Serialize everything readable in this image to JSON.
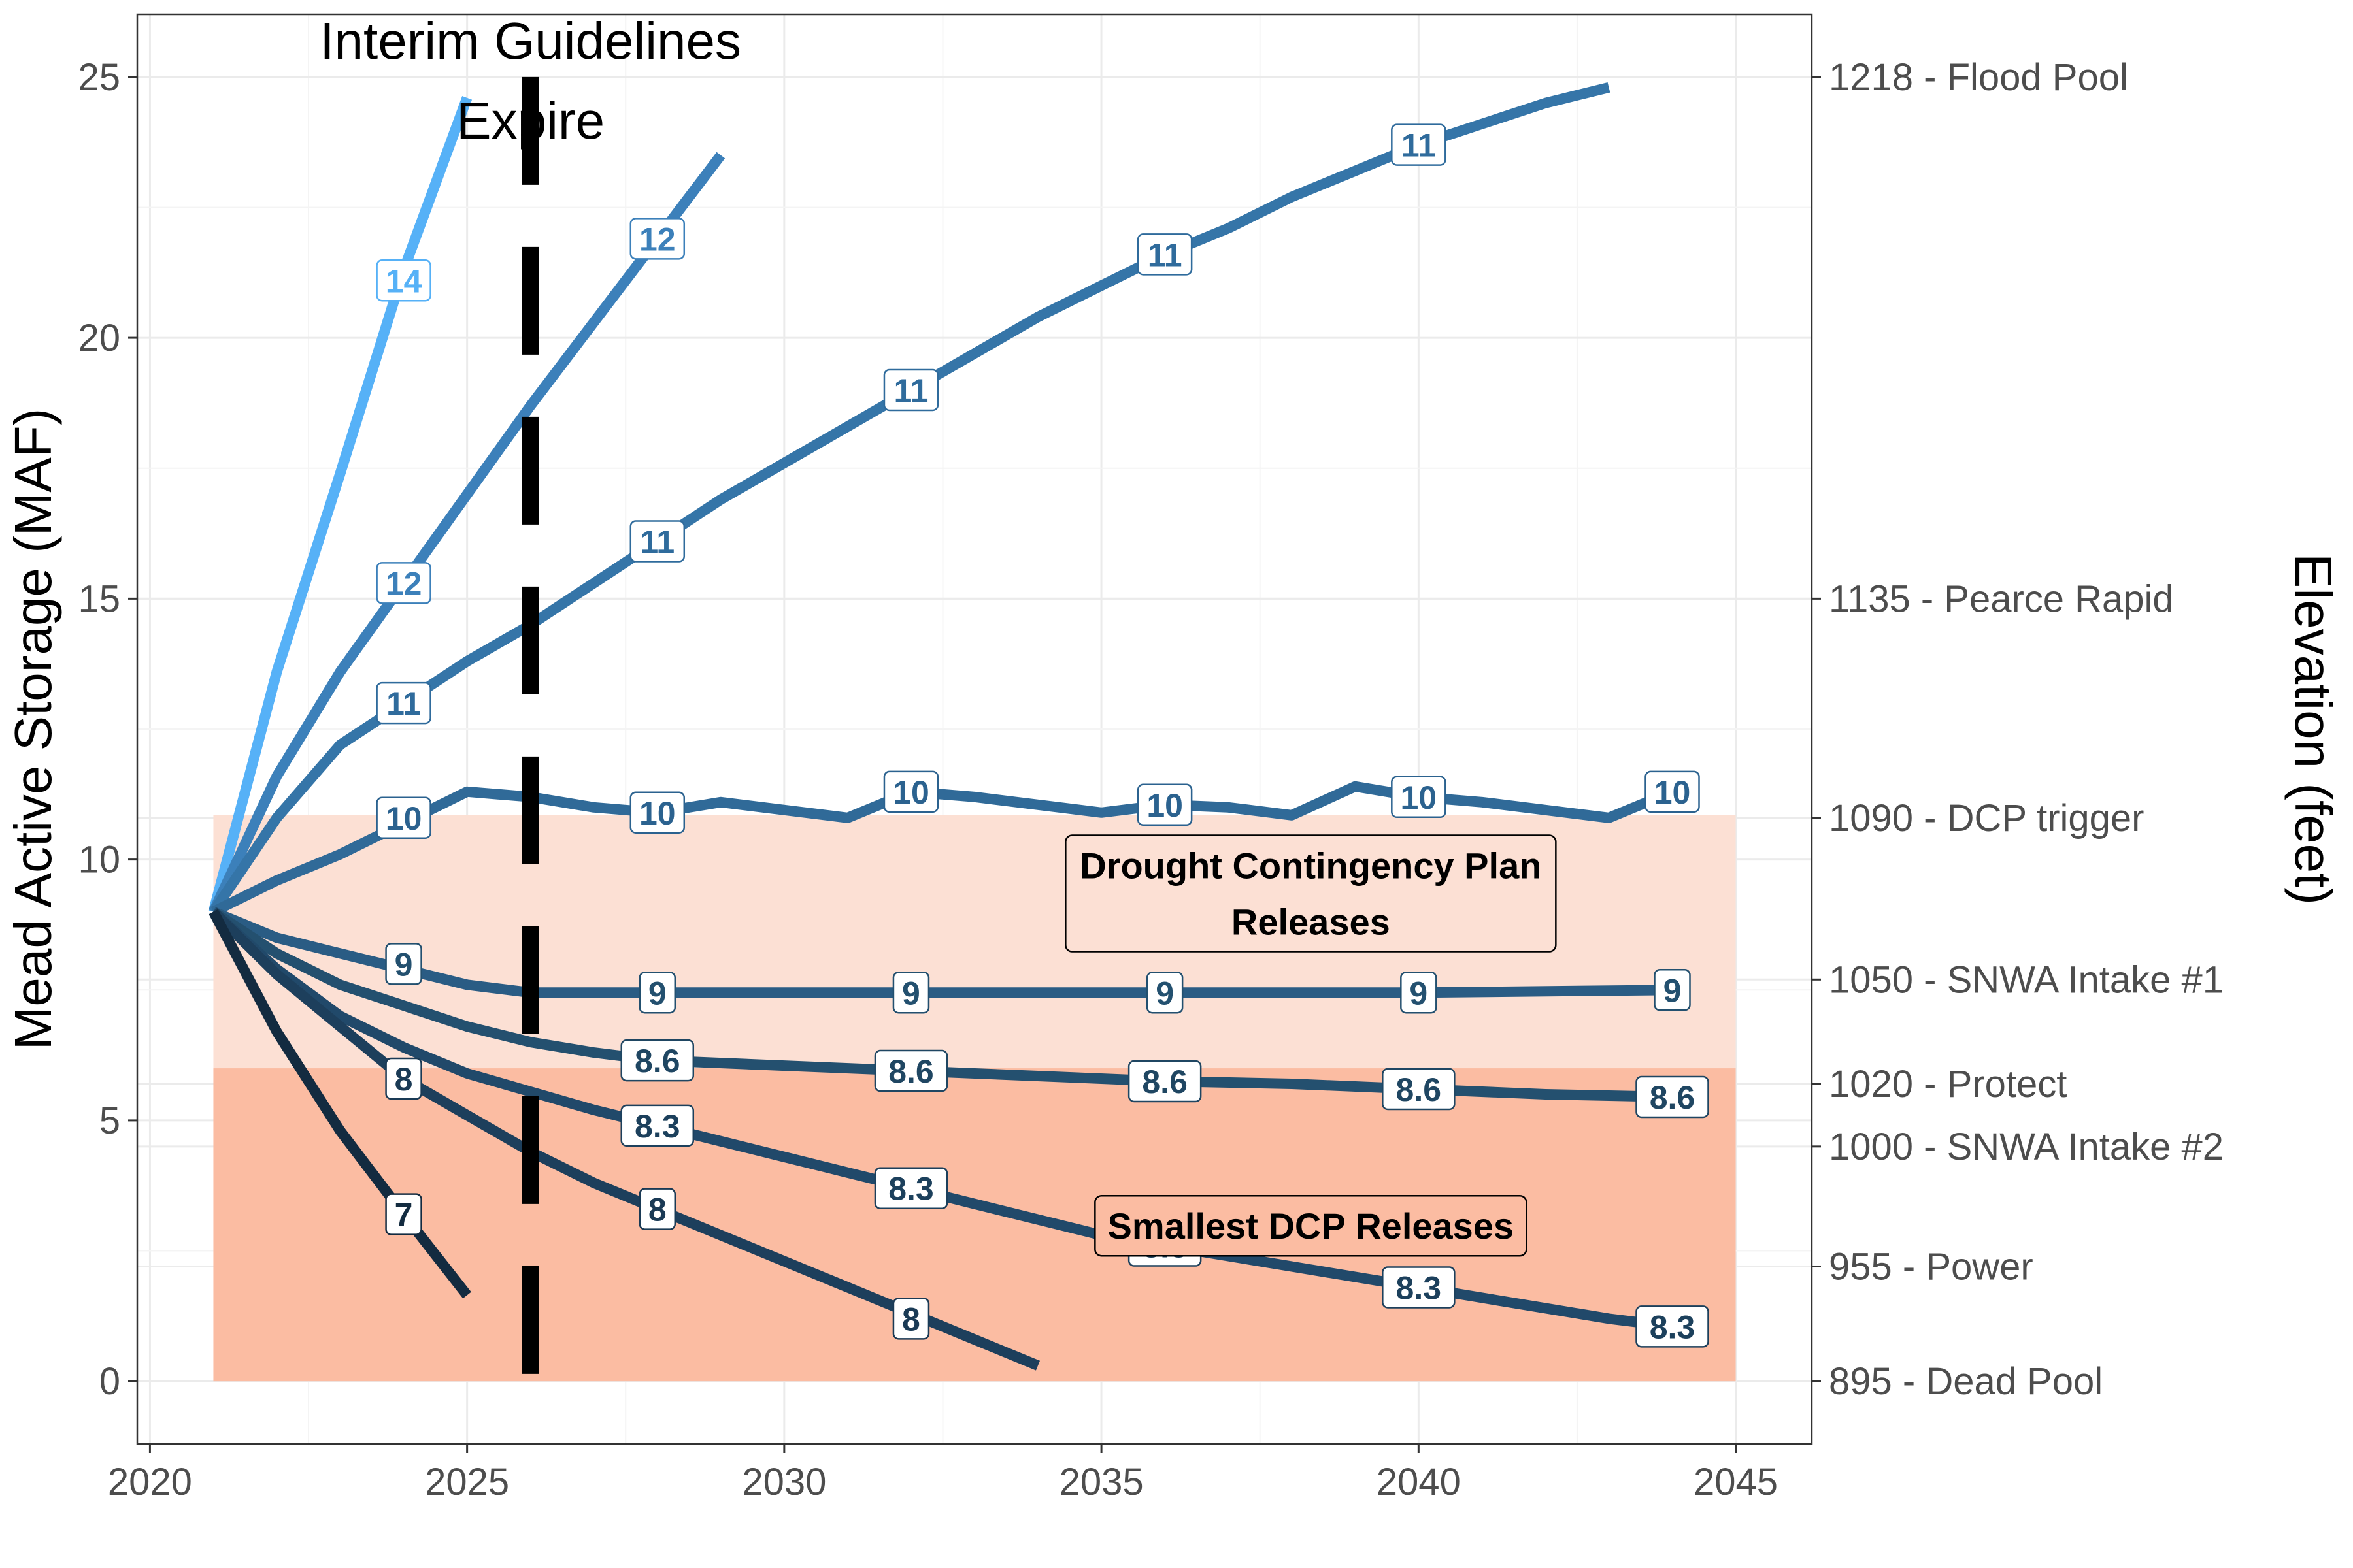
{
  "chart_data": {
    "type": "line",
    "xlabel": "",
    "ylabel": "Mead Active Storage (MAF)",
    "y2label": "Elevation (feet)",
    "xlim": [
      2019.8,
      2046.2
    ],
    "ylim": [
      -1.2,
      26.2
    ],
    "x_ticks": [
      2020,
      2025,
      2030,
      2035,
      2040,
      2045
    ],
    "x_tick_labels": [
      "2020",
      "2025",
      "2030",
      "2035",
      "2040",
      "2045"
    ],
    "y_ticks": [
      0,
      5,
      10,
      15,
      20,
      25
    ],
    "y_tick_labels": [
      "0",
      "5",
      "10",
      "15",
      "20",
      "25"
    ],
    "y2_ticks": [
      {
        "y": 25.0,
        "label": "1218 - Flood Pool"
      },
      {
        "y": 15.0,
        "label": "1135 - Pearce Rapid"
      },
      {
        "y": 10.8,
        "label": "1090 - DCP trigger"
      },
      {
        "y": 7.7,
        "label": "1050 - SNWA Intake #1"
      },
      {
        "y": 5.7,
        "label": "1020 - Protect"
      },
      {
        "y": 4.5,
        "label": "1000 - SNWA Intake #2"
      },
      {
        "y": 2.2,
        "label": "955 - Power"
      },
      {
        "y": 0.0,
        "label": "895 - Dead Pool"
      }
    ],
    "grid": true,
    "regions": [
      {
        "name": "Drought Contingency Plan Releases",
        "x": [
          2021,
          2045
        ],
        "y": [
          6.0,
          10.85
        ],
        "color": "#fce0d4"
      },
      {
        "name": "Smallest DCP Releases",
        "x": [
          2021,
          2045
        ],
        "y": [
          0.0,
          6.0
        ],
        "color": "#fbbca2"
      }
    ],
    "vline": {
      "x": 2026,
      "label_lines": [
        "Interim Guidelines",
        "Expire"
      ]
    },
    "region_labels": [
      {
        "lines": [
          "Drought Contingency Plan",
          "Releases"
        ],
        "x": 2038.3,
        "y": 9.35
      },
      {
        "lines": [
          "Smallest DCP Releases"
        ],
        "x": 2038.3,
        "y": 2.98
      }
    ],
    "series": [
      {
        "color": "#56b1f7",
        "label_color": "#56b1f7",
        "x": [
          2021,
          2022,
          2023,
          2024,
          2025
        ],
        "y": [
          9.0,
          13.6,
          17.4,
          21.3,
          24.6
        ],
        "labels": [
          {
            "x": 2024,
            "y": 21.1,
            "text": "14"
          }
        ]
      },
      {
        "color": "#3c80ba",
        "label_color": "#3c80ba",
        "x": [
          2021,
          2022,
          2023,
          2024,
          2025,
          2026,
          2027,
          2028,
          2029
        ],
        "y": [
          9.0,
          11.6,
          13.6,
          15.3,
          17.0,
          18.7,
          20.3,
          21.9,
          23.5
        ],
        "labels": [
          {
            "x": 2024,
            "y": 15.3,
            "text": "12"
          },
          {
            "x": 2028,
            "y": 21.9,
            "text": "12"
          }
        ]
      },
      {
        "color": "#3575a8",
        "label_color": "#2f6b9c",
        "x": [
          2021,
          2022,
          2023,
          2024,
          2025,
          2026,
          2027,
          2028,
          2029,
          2030,
          2031,
          2032,
          2033,
          2034,
          2035,
          2036,
          2037,
          2038,
          2039,
          2040,
          2041,
          2042,
          2043
        ],
        "y": [
          9.0,
          10.8,
          12.2,
          13.0,
          13.8,
          14.5,
          15.3,
          16.1,
          16.9,
          17.6,
          18.3,
          19.0,
          19.7,
          20.4,
          21.0,
          21.6,
          22.1,
          22.7,
          23.2,
          23.7,
          24.1,
          24.5,
          24.8
        ],
        "labels": [
          {
            "x": 2024,
            "y": 13.0,
            "text": "11"
          },
          {
            "x": 2028,
            "y": 16.1,
            "text": "11"
          },
          {
            "x": 2032,
            "y": 19.0,
            "text": "11"
          },
          {
            "x": 2036,
            "y": 21.6,
            "text": "11"
          },
          {
            "x": 2040,
            "y": 23.7,
            "text": "11"
          }
        ]
      },
      {
        "color": "#306a98",
        "label_color": "#2b628f",
        "x": [
          2021,
          2022,
          2023,
          2024,
          2025,
          2026,
          2027,
          2028,
          2029,
          2030,
          2031,
          2032,
          2033,
          2034,
          2035,
          2036,
          2037,
          2038,
          2039,
          2040,
          2041,
          2042,
          2043,
          2044
        ],
        "y": [
          9.0,
          9.6,
          10.1,
          10.7,
          11.3,
          11.2,
          11.0,
          10.9,
          11.1,
          10.95,
          10.8,
          11.3,
          11.2,
          11.05,
          10.9,
          11.05,
          11.0,
          10.85,
          11.4,
          11.2,
          11.1,
          10.95,
          10.8,
          11.3
        ],
        "labels": [
          {
            "x": 2024,
            "y": 10.8,
            "text": "10"
          },
          {
            "x": 2028,
            "y": 10.9,
            "text": "10"
          },
          {
            "x": 2032,
            "y": 11.3,
            "text": "10"
          },
          {
            "x": 2036,
            "y": 11.05,
            "text": "10"
          },
          {
            "x": 2040,
            "y": 11.2,
            "text": "10"
          },
          {
            "x": 2044,
            "y": 11.3,
            "text": "10"
          }
        ]
      },
      {
        "color": "#2a5c84",
        "label_color": "#23506f",
        "x": [
          2021,
          2022,
          2023,
          2024,
          2025,
          2026,
          2028,
          2032,
          2036,
          2040,
          2044
        ],
        "y": [
          9.0,
          8.5,
          8.2,
          7.9,
          7.6,
          7.45,
          7.45,
          7.45,
          7.45,
          7.45,
          7.5
        ],
        "labels": [
          {
            "x": 2024,
            "y": 8.0,
            "text": "9"
          },
          {
            "x": 2028,
            "y": 7.45,
            "text": "9"
          },
          {
            "x": 2032,
            "y": 7.45,
            "text": "9"
          },
          {
            "x": 2036,
            "y": 7.45,
            "text": "9"
          },
          {
            "x": 2040,
            "y": 7.45,
            "text": "9"
          },
          {
            "x": 2044,
            "y": 7.5,
            "text": "9"
          }
        ]
      },
      {
        "color": "#24506f",
        "label_color": "#1f4662",
        "x": [
          2021,
          2022,
          2023,
          2024,
          2025,
          2026,
          2027,
          2028,
          2030,
          2032,
          2034,
          2036,
          2038,
          2040,
          2042,
          2044
        ],
        "y": [
          9.0,
          8.2,
          7.6,
          7.2,
          6.8,
          6.5,
          6.3,
          6.15,
          6.05,
          5.95,
          5.85,
          5.75,
          5.7,
          5.6,
          5.5,
          5.45
        ],
        "labels": [
          {
            "x": 2028,
            "y": 6.15,
            "text": "8.6"
          },
          {
            "x": 2032,
            "y": 5.95,
            "text": "8.6"
          },
          {
            "x": 2036,
            "y": 5.75,
            "text": "8.6"
          },
          {
            "x": 2040,
            "y": 5.6,
            "text": "8.6"
          },
          {
            "x": 2044,
            "y": 5.45,
            "text": "8.6"
          }
        ]
      },
      {
        "color": "#21496a",
        "label_color": "#1c405c",
        "x": [
          2021,
          2022,
          2023,
          2024,
          2025,
          2026,
          2027,
          2028,
          2029,
          2030,
          2031,
          2032,
          2033,
          2034,
          2035,
          2036,
          2037,
          2038,
          2039,
          2040,
          2041,
          2042,
          2043,
          2044
        ],
        "y": [
          9.0,
          7.9,
          7.0,
          6.4,
          5.9,
          5.55,
          5.2,
          4.9,
          4.6,
          4.3,
          4.0,
          3.7,
          3.4,
          3.1,
          2.8,
          2.6,
          2.4,
          2.2,
          2.0,
          1.8,
          1.6,
          1.4,
          1.2,
          1.05
        ],
        "labels": [
          {
            "x": 2028,
            "y": 4.9,
            "text": "8.3"
          },
          {
            "x": 2032,
            "y": 3.7,
            "text": "8.3"
          },
          {
            "x": 2036,
            "y": 2.6,
            "text": "8.3"
          },
          {
            "x": 2040,
            "y": 1.8,
            "text": "8.3"
          },
          {
            "x": 2044,
            "y": 1.05,
            "text": "8.3"
          }
        ]
      },
      {
        "color": "#1d3f5c",
        "label_color": "#1a3a55",
        "x": [
          2021,
          2022,
          2023,
          2024,
          2025,
          2026,
          2027,
          2028,
          2029,
          2030,
          2031,
          2032,
          2033,
          2034
        ],
        "y": [
          9.0,
          7.8,
          6.8,
          5.8,
          5.1,
          4.4,
          3.8,
          3.3,
          2.8,
          2.3,
          1.8,
          1.3,
          0.8,
          0.3
        ],
        "labels": [
          {
            "x": 2024,
            "y": 5.8,
            "text": "8"
          },
          {
            "x": 2028,
            "y": 3.3,
            "text": "8"
          },
          {
            "x": 2032,
            "y": 1.2,
            "text": "8"
          }
        ]
      },
      {
        "color": "#132b40",
        "label_color": "#132b40",
        "x": [
          2021,
          2022,
          2023,
          2024,
          2025
        ],
        "y": [
          9.0,
          6.7,
          4.8,
          3.2,
          1.65
        ],
        "labels": [
          {
            "x": 2024,
            "y": 3.2,
            "text": "7"
          }
        ]
      }
    ]
  }
}
